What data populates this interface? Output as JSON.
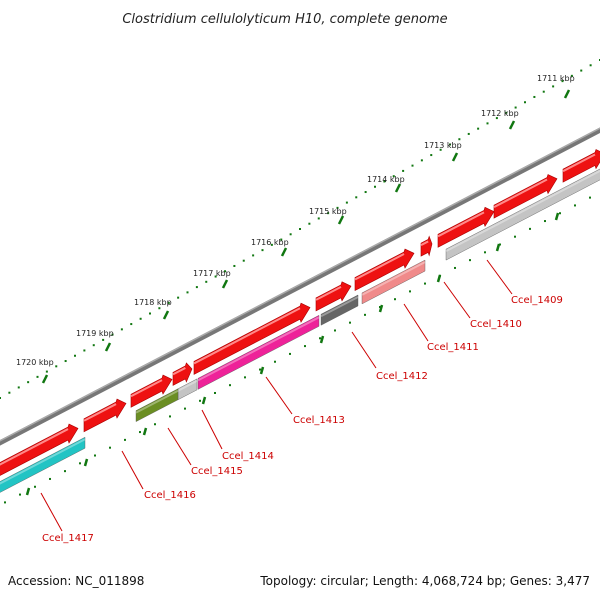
{
  "header": {
    "title": "Clostridium cellulolyticum H10, complete genome"
  },
  "footer": {
    "accession": "Accession: NC_011898",
    "summary": "Topology: circular; Length: 4,068,724 bp; Genes: 3,477"
  },
  "ruler": {
    "labels": [
      "1711 kbp",
      "1712 kbp",
      "1713 kbp",
      "1714 kbp",
      "1715 kbp",
      "1716 kbp",
      "1717 kbp",
      "1718 kbp",
      "1719 kbp",
      "1720 kbp"
    ]
  },
  "colors": {
    "forward_gene": "#ee1111",
    "backbone": "#888888",
    "tick": "#117711",
    "label": "#cc0000"
  },
  "genes": [
    {
      "name": "Ccel_1409",
      "color": "#c4c4c4"
    },
    {
      "name": "Ccel_1410",
      "color": "#ee1111"
    },
    {
      "name": "Ccel_1411",
      "color": "#f08a8a"
    },
    {
      "name": "Ccel_1412",
      "color": "#666666"
    },
    {
      "name": "Ccel_1413",
      "color": "#ee2299"
    },
    {
      "name": "Ccel_1414",
      "color": "#c4c4c4"
    },
    {
      "name": "Ccel_1415",
      "color": "#6b8e23"
    },
    {
      "name": "Ccel_1416",
      "color": "#ee1111"
    },
    {
      "name": "Ccel_1417",
      "color": "#22c4c4"
    }
  ]
}
